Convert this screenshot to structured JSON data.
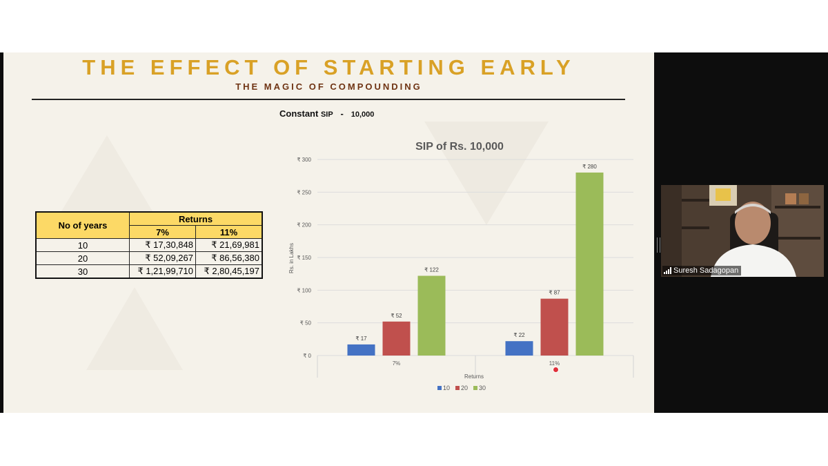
{
  "slide": {
    "title": "THE EFFECT OF STARTING EARLY",
    "subtitle": "THE MAGIC OF COMPOUNDING",
    "constant_label": "Constant ",
    "constant_sip": "SIP",
    "constant_dash": "-",
    "constant_value": "10,000"
  },
  "table": {
    "col_years": "No of years",
    "col_returns": "Returns",
    "rate_1": "7%",
    "rate_2": "11%",
    "rows": [
      {
        "years": "10",
        "r7": "₹ 17,30,848",
        "r11": "₹ 21,69,981"
      },
      {
        "years": "20",
        "r7": "₹ 52,09,267",
        "r11": "₹ 86,56,380"
      },
      {
        "years": "30",
        "r7": "₹ 1,21,99,710",
        "r11": "₹ 2,80,45,197"
      }
    ]
  },
  "chart_data": {
    "type": "bar",
    "title": "SIP of Rs. 10,000",
    "xlabel": "Returns",
    "ylabel": "Rs. in Lakhs",
    "categories": [
      "7%",
      "11%"
    ],
    "series": [
      {
        "name": "10",
        "values": [
          17,
          22
        ],
        "color": "#4472c4"
      },
      {
        "name": "20",
        "values": [
          52,
          87
        ],
        "color": "#c0504d"
      },
      {
        "name": "30",
        "values": [
          122,
          280
        ],
        "color": "#9bbb59"
      }
    ],
    "data_labels": [
      [
        "₹ 17",
        "₹ 22"
      ],
      [
        "₹ 52",
        "₹ 87"
      ],
      [
        "₹ 122",
        "₹ 280"
      ]
    ],
    "ylim": [
      0,
      300
    ],
    "yticks": [
      0,
      50,
      100,
      150,
      200,
      250,
      300
    ],
    "ytick_labels": [
      "₹ 0",
      "₹ 50",
      "₹ 100",
      "₹ 150",
      "₹ 200",
      "₹ 250",
      "₹ 300"
    ],
    "grid": true,
    "legend": "bottom"
  },
  "participant": {
    "name": "Suresh Sadagopan",
    "signal_icon": "signal-bars-icon"
  }
}
